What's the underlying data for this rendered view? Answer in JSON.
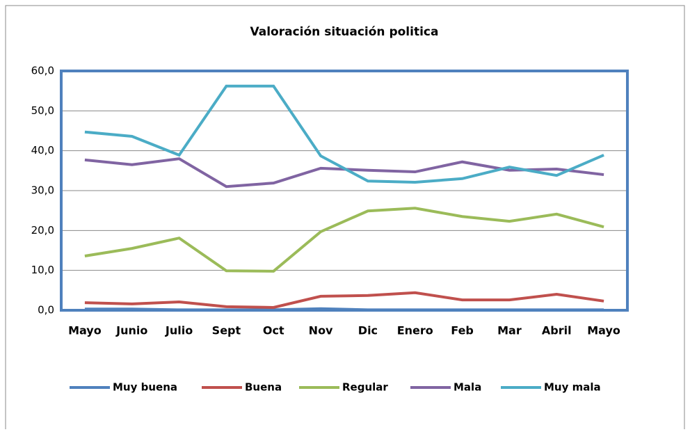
{
  "chart_data": {
    "type": "line",
    "title": "Valoración situación politica",
    "categories": [
      "Mayo",
      "Junio",
      "Julio",
      "Sept",
      "Oct",
      "Nov",
      "Dic",
      "Enero",
      "Feb",
      "Mar",
      "Abril",
      "Mayo"
    ],
    "series": [
      {
        "name": "Muy buena",
        "color": "#4f81bd",
        "values": [
          0.3,
          0.3,
          0.1,
          0.1,
          0.1,
          0.4,
          0.1,
          0.1,
          0.1,
          0.1,
          0.1,
          0.1
        ]
      },
      {
        "name": "Buena",
        "color": "#c0504d",
        "values": [
          1.9,
          1.6,
          2.1,
          0.9,
          0.7,
          3.5,
          3.7,
          4.4,
          2.6,
          2.6,
          4.0,
          2.3
        ]
      },
      {
        "name": "Regular",
        "color": "#9bbb59",
        "values": [
          13.6,
          15.5,
          18.1,
          9.9,
          9.8,
          19.7,
          24.9,
          25.6,
          23.5,
          22.3,
          24.1,
          20.9
        ]
      },
      {
        "name": "Mala",
        "color": "#8064a2",
        "values": [
          37.7,
          36.5,
          38.0,
          31.0,
          31.9,
          35.6,
          35.1,
          34.7,
          37.2,
          35.1,
          35.4,
          34.0
        ]
      },
      {
        "name": "Muy mala",
        "color": "#4bacc6",
        "values": [
          44.7,
          43.6,
          38.9,
          56.2,
          56.2,
          38.7,
          32.4,
          32.1,
          33.0,
          35.9,
          33.8,
          38.9
        ]
      }
    ],
    "ylim": [
      0,
      60
    ],
    "yticks": [
      {
        "value": 0,
        "label": "0,0"
      },
      {
        "value": 10,
        "label": "10,0"
      },
      {
        "value": 20,
        "label": "20,0"
      },
      {
        "value": 30,
        "label": "30,0"
      },
      {
        "value": 40,
        "label": "40,0"
      },
      {
        "value": 50,
        "label": "50,0"
      },
      {
        "value": 60,
        "label": "60,0"
      }
    ],
    "grid": true,
    "legend": "bottom"
  }
}
